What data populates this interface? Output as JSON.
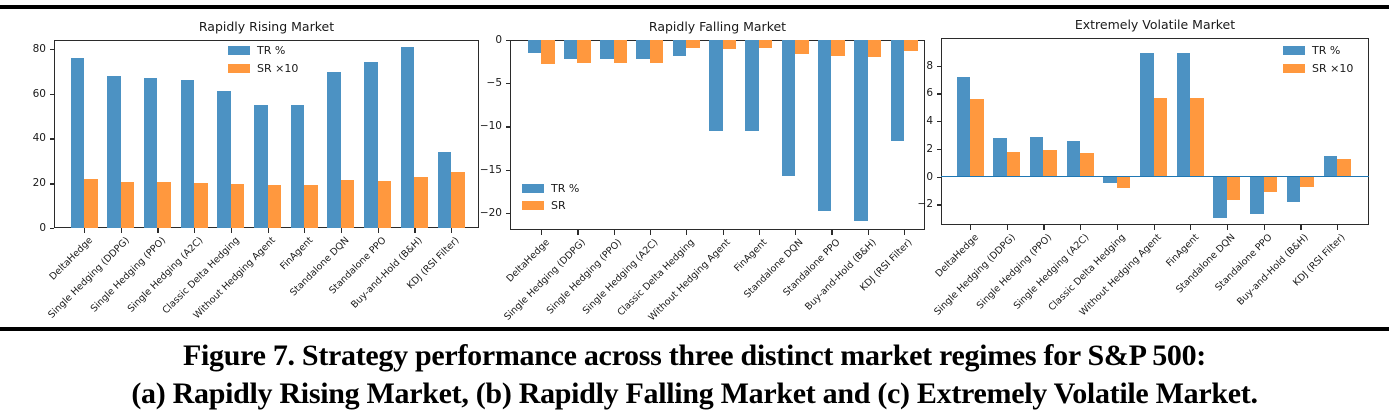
{
  "figure": {
    "caption_line1": "Figure 7. Strategy performance across three distinct market regimes for S&P 500:",
    "caption_line2": "(a) Rapidly Rising Market, (b) Rapidly Falling Market and (c) Extremely Volatile Market."
  },
  "colors": {
    "tr_bar": "#4C92C3",
    "sr_bar": "#FF983E",
    "zero_line": "#1F77B4",
    "rule": "#000000"
  },
  "chart_data": [
    {
      "type": "bar",
      "title": "Rapidly Rising Market",
      "categories": [
        "DeltaHedge",
        "Single Hedging (DDPG)",
        "Single Hedging (PPO)",
        "Single Hedging (A2C)",
        "Classic Delta Hedging",
        "Without Hedging Agent",
        "FinAgent",
        "Standalone DQN",
        "Standalone PPO",
        "Buy-and-Hold (B&H)",
        "KDJ (RSI Filter)"
      ],
      "series": [
        {
          "name": "TR %",
          "values": [
            76,
            68,
            67,
            66,
            61,
            55,
            55,
            69.5,
            74,
            81,
            34
          ]
        },
        {
          "name": "SR ×10",
          "values": [
            22,
            20.7,
            20.7,
            20.3,
            19.8,
            19.4,
            19.4,
            21.5,
            21,
            23,
            25
          ]
        }
      ],
      "yticks": [
        0,
        20,
        40,
        60,
        80
      ],
      "ylim": [
        0,
        84
      ],
      "legend_position": "upper center-left",
      "grid": false,
      "zero_line": false
    },
    {
      "type": "bar",
      "title": "Rapidly Falling Market",
      "categories": [
        "DeltaHedge",
        "Single Hedging (DDPG)",
        "Single Hedging (PPO)",
        "Single Hedging (A2C)",
        "Classic Delta Hedging",
        "Without Hedging Agent",
        "FinAgent",
        "Standalone DQN",
        "Standalone PPO",
        "Buy-and-Hold (B&H)",
        "KDJ (RSI Filter)"
      ],
      "series": [
        {
          "name": "TR %",
          "values": [
            -1.5,
            -2.2,
            -2.2,
            -2.2,
            -1.9,
            -10.5,
            -10.5,
            -15.8,
            -19.8,
            -21,
            -11.7
          ]
        },
        {
          "name": "SR",
          "values": [
            -2.8,
            -2.7,
            -2.7,
            -2.7,
            -0.9,
            -1.0,
            -0.9,
            -1.6,
            -1.9,
            -2.0,
            -1.3
          ]
        }
      ],
      "yticks": [
        0,
        -5,
        -10,
        -15,
        -20
      ],
      "ylim": [
        -22,
        0
      ],
      "legend_position": "lower left",
      "grid": false,
      "zero_line": false
    },
    {
      "type": "bar",
      "title": "Extremely Volatile Market",
      "categories": [
        "DeltaHedge",
        "Single Hedging (DDPG)",
        "Single Hedging (PPO)",
        "Single Hedging (A2C)",
        "Classic Delta Hedging",
        "Without Hedging Agent",
        "FinAgent",
        "Standalone DQN",
        "Standalone PPO",
        "Buy-and-Hold (B&H)",
        "KDJ (RSI Filter)"
      ],
      "series": [
        {
          "name": "TR %",
          "values": [
            7.2,
            2.8,
            2.85,
            2.6,
            -0.5,
            8.9,
            8.9,
            -3.0,
            -2.7,
            -1.85,
            1.5
          ]
        },
        {
          "name": "SR ×10",
          "values": [
            5.6,
            1.8,
            1.9,
            1.7,
            -0.85,
            5.7,
            5.7,
            -1.7,
            -1.15,
            -0.75,
            1.3
          ]
        }
      ],
      "yticks": [
        8,
        6,
        4,
        2,
        0,
        -2
      ],
      "ylim": [
        -3.5,
        10
      ],
      "legend_position": "upper right",
      "grid": false,
      "zero_line": true
    }
  ]
}
